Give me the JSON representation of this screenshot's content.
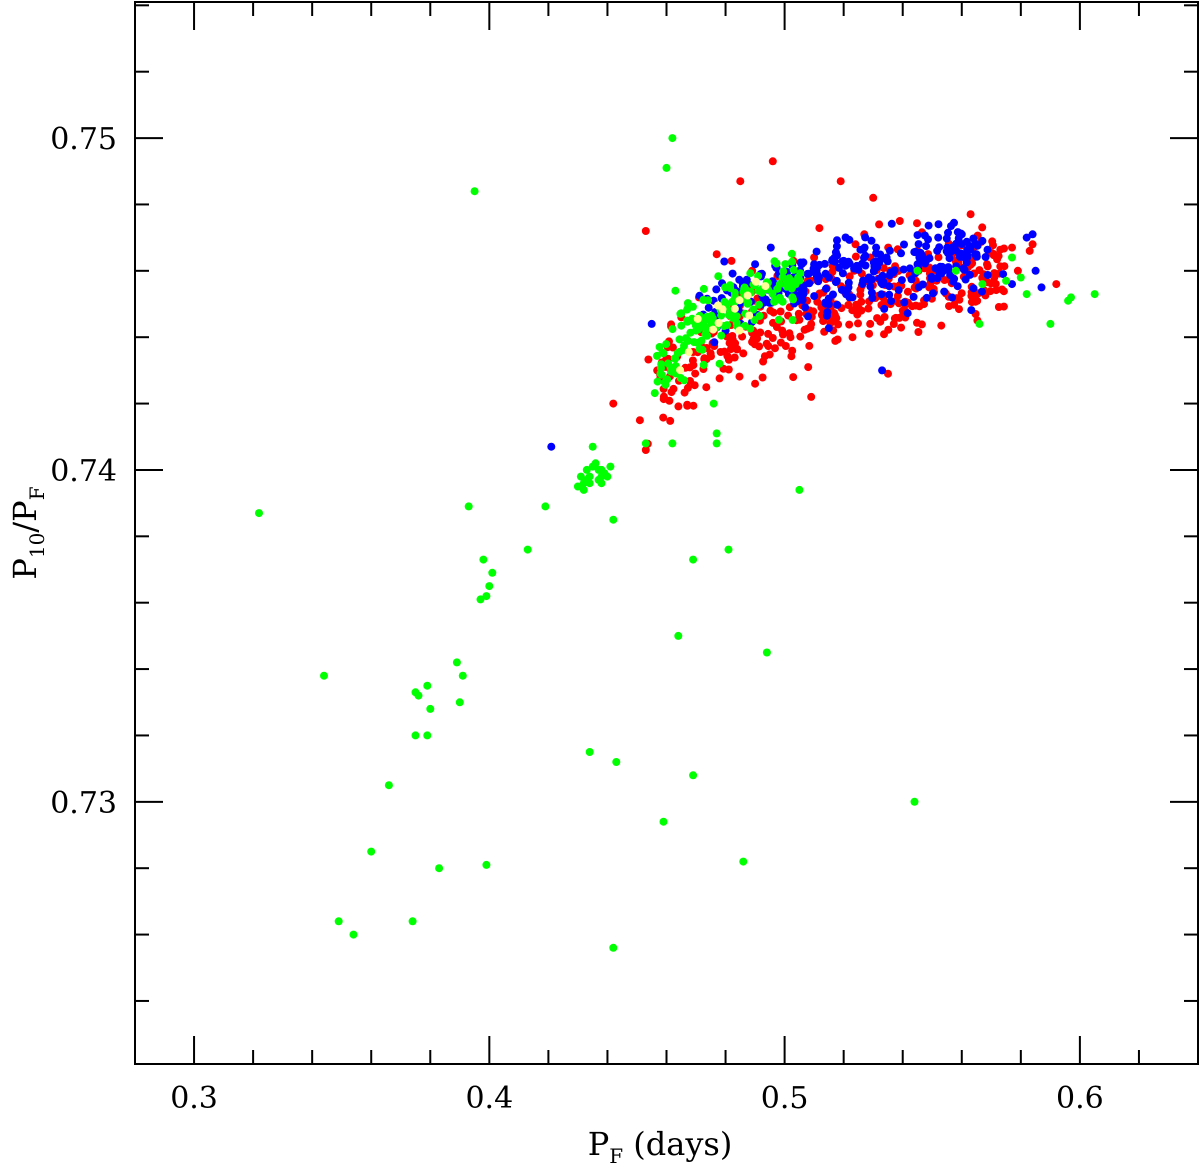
{
  "chart_data": {
    "type": "scatter",
    "xlabel": {
      "main": "P",
      "sub": "F",
      "suffix": "(days)"
    },
    "ylabel": {
      "p1": "P",
      "s1": "10",
      "slash": "/P",
      "s2": "F"
    },
    "xlim": [
      0.28,
      0.64
    ],
    "ylim": [
      0.7221,
      0.7541
    ],
    "x_ticks": [
      0.3,
      0.4,
      0.5,
      0.6
    ],
    "x_tick_labels": [
      "0.3",
      "0.4",
      "0.5",
      "0.6"
    ],
    "y_ticks": [
      0.73,
      0.74,
      0.75
    ],
    "y_tick_labels": [
      "0.73",
      "0.74",
      "0.75"
    ],
    "grid": false,
    "legend": "none",
    "series": [
      {
        "color": "#ff0000",
        "points": [
          [
            0.453,
            0.7472
          ],
          [
            0.465,
            0.7446
          ],
          [
            0.471,
            0.7452
          ],
          [
            0.477,
            0.7465
          ],
          [
            0.482,
            0.7463
          ],
          [
            0.485,
            0.7487
          ],
          [
            0.489,
            0.746
          ],
          [
            0.496,
            0.7493
          ],
          [
            0.503,
            0.7463
          ],
          [
            0.509,
            0.7457
          ],
          [
            0.51,
            0.7464
          ],
          [
            0.519,
            0.7487
          ],
          [
            0.524,
            0.7468
          ],
          [
            0.527,
            0.7471
          ],
          [
            0.529,
            0.7464
          ],
          [
            0.53,
            0.7482
          ],
          [
            0.532,
            0.7474
          ],
          [
            0.537,
            0.7459
          ],
          [
            0.539,
            0.7475
          ],
          [
            0.545,
            0.7466
          ],
          [
            0.549,
            0.7461
          ],
          [
            0.56,
            0.7461
          ],
          [
            0.571,
            0.7458
          ],
          [
            0.577,
            0.7467
          ],
          [
            0.579,
            0.746
          ],
          [
            0.583,
            0.7466
          ],
          [
            0.584,
            0.7468
          ],
          [
            0.592,
            0.7456
          ],
          [
            0.442,
            0.742
          ],
          [
            0.451,
            0.7415
          ],
          [
            0.453,
            0.7406
          ],
          [
            0.473,
            0.7443
          ],
          [
            0.49,
            0.7426
          ],
          [
            0.502,
            0.744
          ],
          [
            0.508,
            0.7431
          ],
          [
            0.509,
            0.7422
          ],
          [
            0.523,
            0.744
          ],
          [
            0.535,
            0.7429
          ],
          [
            0.529,
            0.7444
          ],
          [
            0.526,
            0.7448
          ],
          [
            0.54,
            0.7448
          ],
          [
            0.549,
            0.7455
          ]
        ]
      },
      {
        "color": "#0000ff",
        "points": [
          [
            0.421,
            0.7407
          ],
          [
            0.455,
            0.7444
          ],
          [
            0.476,
            0.7451
          ],
          [
            0.48,
            0.7442
          ],
          [
            0.483,
            0.7448
          ],
          [
            0.49,
            0.7462
          ],
          [
            0.496,
            0.7453
          ],
          [
            0.51,
            0.7462
          ],
          [
            0.515,
            0.7458
          ],
          [
            0.52,
            0.7463
          ],
          [
            0.523,
            0.7452
          ],
          [
            0.531,
            0.7467
          ],
          [
            0.533,
            0.743
          ],
          [
            0.545,
            0.7462
          ],
          [
            0.552,
            0.747
          ],
          [
            0.56,
            0.7471
          ],
          [
            0.565,
            0.7465
          ],
          [
            0.567,
            0.7469
          ],
          [
            0.574,
            0.7459
          ],
          [
            0.577,
            0.7456
          ],
          [
            0.582,
            0.747
          ],
          [
            0.584,
            0.7471
          ],
          [
            0.585,
            0.746
          ],
          [
            0.587,
            0.7455
          ]
        ]
      },
      {
        "color": "#00ff00",
        "points": [
          [
            0.322,
            0.7387
          ],
          [
            0.344,
            0.7338
          ],
          [
            0.349,
            0.7264
          ],
          [
            0.354,
            0.726
          ],
          [
            0.36,
            0.7285
          ],
          [
            0.366,
            0.7305
          ],
          [
            0.374,
            0.7264
          ],
          [
            0.375,
            0.732
          ],
          [
            0.375,
            0.7333
          ],
          [
            0.376,
            0.7332
          ],
          [
            0.379,
            0.7335
          ],
          [
            0.379,
            0.732
          ],
          [
            0.38,
            0.7328
          ],
          [
            0.383,
            0.728
          ],
          [
            0.389,
            0.7342
          ],
          [
            0.39,
            0.733
          ],
          [
            0.391,
            0.7338
          ],
          [
            0.393,
            0.7389
          ],
          [
            0.395,
            0.7484
          ],
          [
            0.397,
            0.7361
          ],
          [
            0.398,
            0.7373
          ],
          [
            0.399,
            0.7281
          ],
          [
            0.399,
            0.7362
          ],
          [
            0.4,
            0.7365
          ],
          [
            0.401,
            0.7369
          ],
          [
            0.413,
            0.7376
          ],
          [
            0.419,
            0.7389
          ],
          [
            0.43,
            0.7395
          ],
          [
            0.431,
            0.7398
          ],
          [
            0.432,
            0.7396
          ],
          [
            0.432,
            0.7394
          ],
          [
            0.433,
            0.7397
          ],
          [
            0.433,
            0.74
          ],
          [
            0.434,
            0.7396
          ],
          [
            0.434,
            0.7398
          ],
          [
            0.435,
            0.7401
          ],
          [
            0.435,
            0.7407
          ],
          [
            0.436,
            0.7402
          ],
          [
            0.437,
            0.7397
          ],
          [
            0.437,
            0.74
          ],
          [
            0.438,
            0.7396
          ],
          [
            0.438,
            0.7398
          ],
          [
            0.438,
            0.74
          ],
          [
            0.439,
            0.7399
          ],
          [
            0.44,
            0.7398
          ],
          [
            0.434,
            0.7315
          ],
          [
            0.441,
            0.7401
          ],
          [
            0.442,
            0.7385
          ],
          [
            0.442,
            0.7256
          ],
          [
            0.443,
            0.7312
          ],
          [
            0.453,
            0.7408
          ],
          [
            0.459,
            0.7294
          ],
          [
            0.46,
            0.7491
          ],
          [
            0.462,
            0.7408
          ],
          [
            0.462,
            0.75
          ],
          [
            0.463,
            0.7454
          ],
          [
            0.464,
            0.735
          ],
          [
            0.466,
            0.7427
          ],
          [
            0.467,
            0.7445
          ],
          [
            0.469,
            0.7308
          ],
          [
            0.469,
            0.7373
          ],
          [
            0.476,
            0.742
          ],
          [
            0.477,
            0.7408
          ],
          [
            0.477,
            0.7411
          ],
          [
            0.478,
            0.7432
          ],
          [
            0.481,
            0.7376
          ],
          [
            0.486,
            0.7282
          ],
          [
            0.494,
            0.7345
          ],
          [
            0.505,
            0.7394
          ],
          [
            0.544,
            0.73
          ],
          [
            0.545,
            0.746
          ],
          [
            0.558,
            0.746
          ],
          [
            0.566,
            0.7444
          ],
          [
            0.567,
            0.7456
          ],
          [
            0.575,
            0.7457
          ],
          [
            0.577,
            0.7464
          ],
          [
            0.58,
            0.7458
          ],
          [
            0.582,
            0.7453
          ],
          [
            0.59,
            0.7444
          ],
          [
            0.596,
            0.7451
          ],
          [
            0.597,
            0.7452
          ],
          [
            0.605,
            0.7453
          ]
        ]
      }
    ],
    "dense_clusters": [
      {
        "color": "#ff0000",
        "count": 380,
        "x_start": 0.456,
        "x_end": 0.575,
        "y_start": 0.7422,
        "y_end": 0.746,
        "x_spread": 0.006,
        "y_spread": 0.00065
      },
      {
        "color": "#0000ff",
        "count": 300,
        "x_start": 0.475,
        "x_end": 0.565,
        "y_start": 0.7445,
        "y_end": 0.7465,
        "x_spread": 0.007,
        "y_spread": 0.00055
      },
      {
        "color": "#00ff00",
        "count": 160,
        "x_start": 0.456,
        "x_end": 0.505,
        "y_start": 0.7424,
        "y_end": 0.7458,
        "x_spread": 0.004,
        "y_spread": 0.0005
      },
      {
        "color": "#ffff99",
        "count": 14,
        "x_start": 0.464,
        "x_end": 0.496,
        "y_start": 0.7428,
        "y_end": 0.7455,
        "x_spread": 0.003,
        "y_spread": 0.0003
      }
    ]
  }
}
